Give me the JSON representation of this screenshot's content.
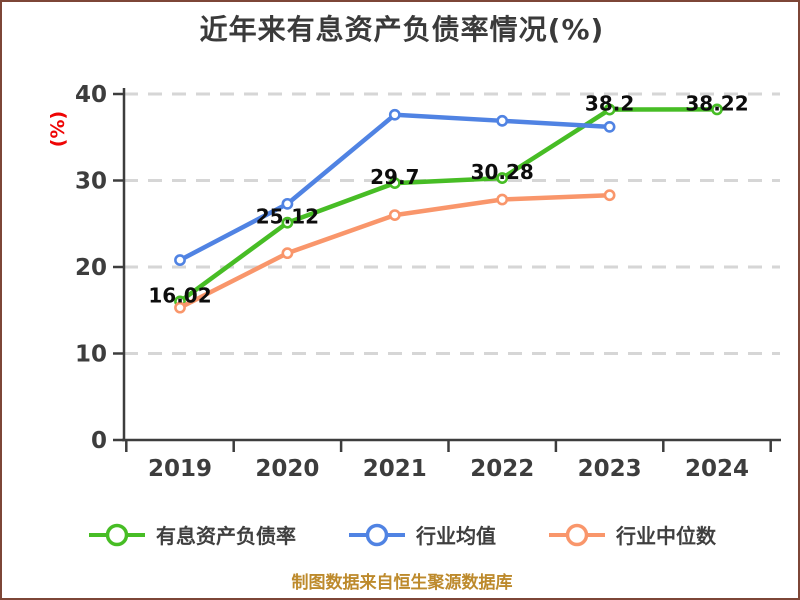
{
  "window": {
    "background": "#ffffff",
    "frame_border_color": "#7d4637"
  },
  "header": {
    "title": "近年来有息资产负债率情况(%)",
    "title_color": "#3a3a3a"
  },
  "axes": {
    "y_label": "(%)",
    "y_label_color": "#ee0505",
    "tick_text_color": "#3d3d3d",
    "spine_color": "#3d3d3d",
    "grid_color": "#d6d6d6",
    "data_label_color": "#0d0d0d"
  },
  "chart_data": {
    "type": "line",
    "title": "近年来有息资产负债率情况(%)",
    "xlabel": "",
    "ylabel": "(%)",
    "categories": [
      "2019",
      "2020",
      "2021",
      "2022",
      "2023",
      "2024"
    ],
    "y_ticks": [
      0,
      10,
      20,
      30,
      40
    ],
    "ylim": [
      0,
      41
    ],
    "grid": "horizontal-dashed",
    "legend_position": "bottom",
    "marker": "circle-white-fill",
    "series": [
      {
        "name": "有息资产负债率",
        "color": "#47bd25",
        "values": [
          16.02,
          25.12,
          29.7,
          30.28,
          38.2,
          38.22
        ],
        "labels": [
          "16.02",
          "25.12",
          "29.7",
          "30.28",
          "38.2",
          "38.22"
        ]
      },
      {
        "name": "行业均值",
        "color": "#5083e3",
        "values": [
          20.8,
          27.3,
          37.6,
          36.9,
          36.2,
          null
        ],
        "labels": null
      },
      {
        "name": "行业中位数",
        "color": "#f9966b",
        "values": [
          15.3,
          21.6,
          26.0,
          27.8,
          28.3,
          null
        ],
        "labels": null
      }
    ]
  },
  "legend": {
    "items": [
      {
        "label": "有息资产负债率",
        "color": "#47bd25"
      },
      {
        "label": "行业均值",
        "color": "#5083e3"
      },
      {
        "label": "行业中位数",
        "color": "#f9966b"
      }
    ]
  },
  "footer": {
    "text": "制图数据来自恒生聚源数据库",
    "color": "#bd8a2c"
  }
}
